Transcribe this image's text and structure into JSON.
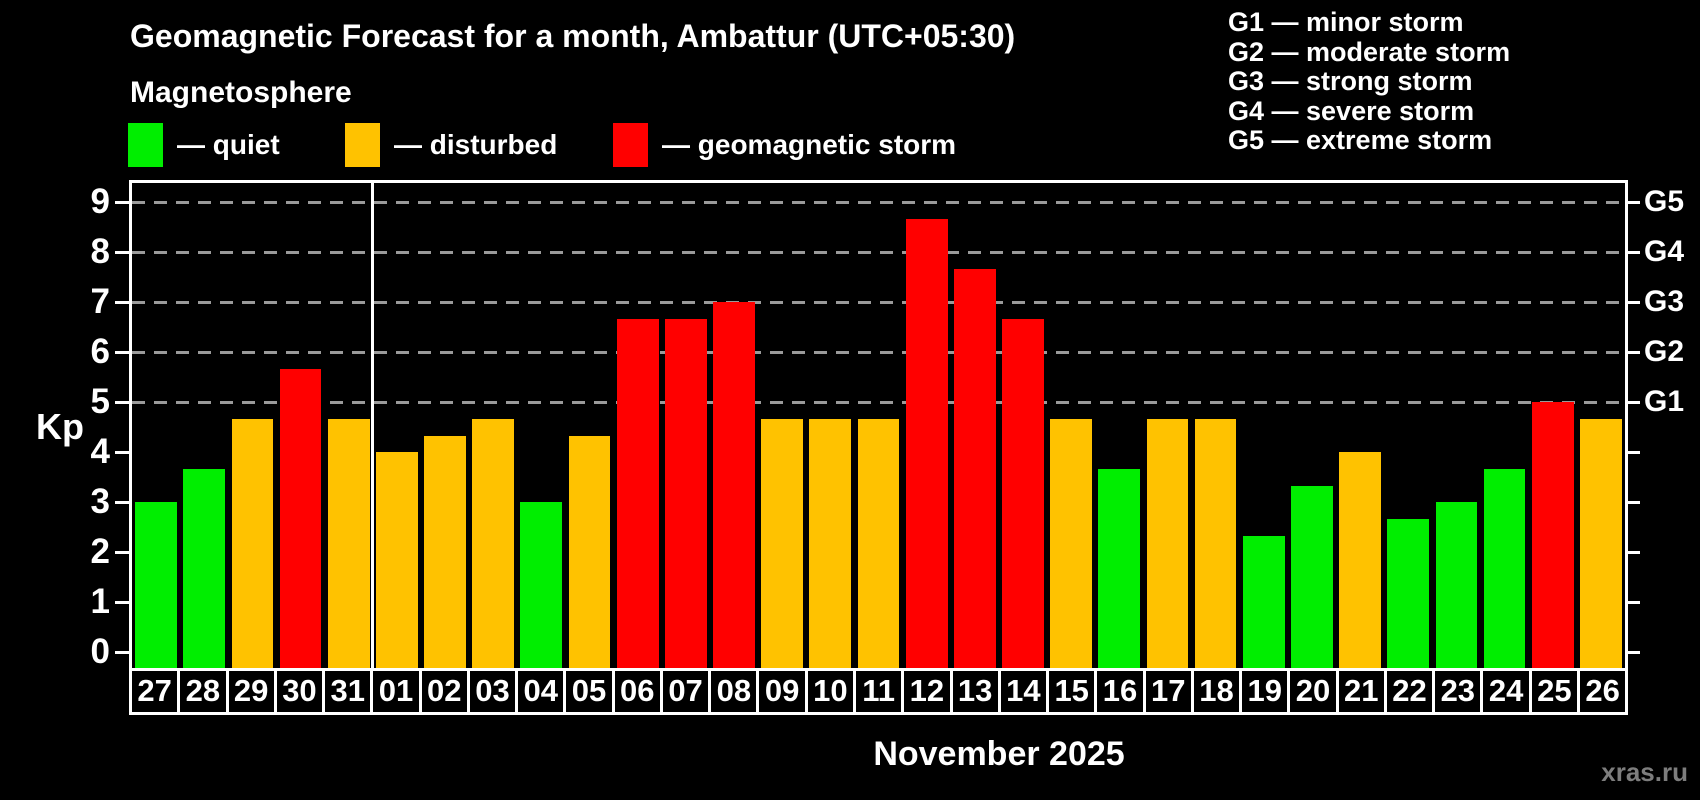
{
  "header": {
    "title": "Geomagnetic Forecast for a month, Ambattur (UTC+05:30)",
    "subtitle": "Magnetosphere",
    "legend": [
      {
        "name": "quiet",
        "label": "— quiet",
        "color": "#00ee00"
      },
      {
        "name": "disturbed",
        "label": "— disturbed",
        "color": "#ffc200"
      },
      {
        "name": "storm",
        "label": "— geomagnetic storm",
        "color": "#ff0000"
      }
    ]
  },
  "storm_scale_legend": [
    "G1 — minor storm",
    "G2 — moderate storm",
    "G3 — strong storm",
    "G4 — severe storm",
    "G5 — extreme storm"
  ],
  "chart_data": {
    "type": "bar",
    "title": "Geomagnetic Forecast for a month, Ambattur (UTC+05:30)",
    "ylabel": "Kp",
    "xlabel": "November 2025",
    "ylim": [
      0,
      9
    ],
    "yticks": [
      0,
      1,
      2,
      3,
      4,
      5,
      6,
      7,
      8,
      9
    ],
    "gridlines_at": [
      5,
      6,
      7,
      8,
      9
    ],
    "grid": "dashed, horizontal only, at storm levels G1-G5",
    "legend_position": "top",
    "right_axis": [
      {
        "kp": 5,
        "label": "G1"
      },
      {
        "kp": 6,
        "label": "G2"
      },
      {
        "kp": 7,
        "label": "G3"
      },
      {
        "kp": 8,
        "label": "G4"
      },
      {
        "kp": 9,
        "label": "G5"
      }
    ],
    "month_separator_after_index": 4,
    "categories": [
      "27",
      "28",
      "29",
      "30",
      "31",
      "01",
      "02",
      "03",
      "04",
      "05",
      "06",
      "07",
      "08",
      "09",
      "10",
      "11",
      "12",
      "13",
      "14",
      "15",
      "16",
      "17",
      "18",
      "19",
      "20",
      "21",
      "22",
      "23",
      "24",
      "25",
      "26"
    ],
    "series": [
      {
        "name": "Kp forecast",
        "values": [
          3,
          3.67,
          4.67,
          5.67,
          4.67,
          4,
          4.33,
          4.67,
          3,
          4.33,
          6.67,
          6.67,
          7,
          4.67,
          4.67,
          4.67,
          8.67,
          7.67,
          6.67,
          4.67,
          3.67,
          4.67,
          4.67,
          2.33,
          3.33,
          4,
          2.67,
          3,
          3.67,
          5,
          4.67
        ]
      }
    ],
    "statuses": [
      "quiet",
      "quiet",
      "disturbed",
      "storm",
      "disturbed",
      "disturbed",
      "disturbed",
      "disturbed",
      "quiet",
      "disturbed",
      "storm",
      "storm",
      "storm",
      "disturbed",
      "disturbed",
      "disturbed",
      "storm",
      "storm",
      "storm",
      "disturbed",
      "quiet",
      "disturbed",
      "disturbed",
      "quiet",
      "quiet",
      "disturbed",
      "quiet",
      "quiet",
      "quiet",
      "storm",
      "disturbed"
    ],
    "colors": {
      "quiet": "#00ee00",
      "disturbed": "#ffc200",
      "storm": "#ff0000"
    }
  },
  "footer": {
    "x_axis_title": "November 2025",
    "watermark": "xras.ru"
  }
}
